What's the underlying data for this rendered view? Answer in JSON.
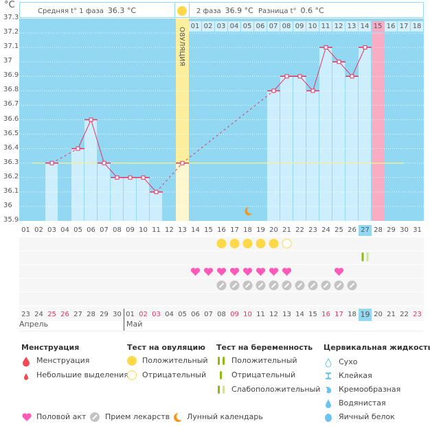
{
  "header": {
    "unit": "°C",
    "phase1_label": "Средняя t° 1 фаза",
    "phase1_value": "36.3 °C",
    "phase2_label": "2 фаза",
    "phase2_value": "36.9 °C",
    "diff_label": "Разница t°",
    "diff_value": "0.6 °C",
    "ovulation_label": "ОВУЛЯЦИЯ"
  },
  "chart_data": {
    "type": "line",
    "title": "",
    "xlabel": "",
    "ylabel": "°C",
    "ylim": [
      35.9,
      37.3
    ],
    "y_ticks": [
      "37.3",
      "37.2",
      "37.1",
      "37",
      "36.9",
      "36.8",
      "36.7",
      "36.6",
      "36.5",
      "36.4",
      "36.3",
      "36.2",
      "36.1",
      "36",
      "35.9"
    ],
    "cycle_days": [
      "01",
      "02",
      "03",
      "04",
      "05",
      "06",
      "07",
      "08",
      "09",
      "10",
      "11",
      "12",
      "13",
      "14",
      "15",
      "16",
      "17",
      "18",
      "19",
      "20",
      "21",
      "22",
      "23",
      "24",
      "25",
      "26",
      "27",
      "28",
      "29",
      "30",
      "31"
    ],
    "series": [
      {
        "name": "Базальная температура",
        "points": [
          {
            "day": 3,
            "value": 36.3
          },
          {
            "day": 5,
            "value": 36.4
          },
          {
            "day": 6,
            "value": 36.6
          },
          {
            "day": 7,
            "value": 36.3
          },
          {
            "day": 8,
            "value": 36.2
          },
          {
            "day": 9,
            "value": 36.2
          },
          {
            "day": 10,
            "value": 36.2
          },
          {
            "day": 11,
            "value": 36.1
          },
          {
            "day": 13,
            "value": 36.3
          },
          {
            "day": 20,
            "value": 36.8
          },
          {
            "day": 21,
            "value": 36.9
          },
          {
            "day": 22,
            "value": 36.9
          },
          {
            "day": 23,
            "value": 36.8
          },
          {
            "day": 24,
            "value": 37.1
          },
          {
            "day": 25,
            "value": 37.0
          },
          {
            "day": 26,
            "value": 36.9
          },
          {
            "day": 27,
            "value": 37.1
          }
        ]
      }
    ],
    "coverline": 36.3,
    "ovulation_day": 13,
    "highlight_day": 28,
    "post_ovulation_days": [
      "01",
      "02",
      "03",
      "04",
      "05",
      "06",
      "07",
      "08",
      "09",
      "10",
      "11",
      "12",
      "13",
      "14",
      "15",
      "16",
      "17",
      "18"
    ],
    "highlight_post_day": "15",
    "moon_day": 18
  },
  "today_index": 27,
  "calendar": {
    "dates": [
      "23",
      "24",
      "25",
      "26",
      "27",
      "28",
      "29",
      "30",
      "01",
      "02",
      "03",
      "04",
      "05",
      "06",
      "07",
      "08",
      "09",
      "10",
      "11",
      "12",
      "13",
      "14",
      "15",
      "16",
      "17",
      "18",
      "19",
      "20",
      "21",
      "22",
      "23"
    ],
    "weekend_indices": [
      3,
      4,
      10,
      11,
      17,
      18,
      24,
      25,
      31
    ],
    "today_index": 27,
    "months": [
      {
        "label": "Апрель",
        "start": 1
      },
      {
        "label": "Май",
        "start": 9
      }
    ]
  },
  "markers": {
    "ovulation_test_positive_days": [
      16,
      17,
      18,
      19,
      20
    ],
    "ovulation_test_negative_days": [
      21
    ],
    "pregnancy_test_faint_days": [
      27
    ],
    "intercourse_days": [
      14,
      15,
      16,
      17,
      18,
      19,
      20,
      21,
      25
    ],
    "medication_days": [
      16,
      17,
      18,
      19,
      20,
      21,
      22,
      23,
      24,
      25,
      26
    ]
  },
  "legend": {
    "menstruation": {
      "title": "Менструация",
      "items": [
        "Менструация",
        "Небольшие выделения"
      ]
    },
    "ovulation_test": {
      "title": "Тест на овуляцию",
      "items": [
        "Положительный",
        "Отрицательный"
      ]
    },
    "pregnancy_test": {
      "title": "Тест на беременность",
      "items": [
        "Положительный",
        "Отрицательный",
        "Слабоположительный"
      ]
    },
    "cervical": {
      "title": "Цервикальная жидкость",
      "items": [
        "Сухо",
        "Клейкая",
        "Кремообразная",
        "Водянистая",
        "Яичный белок"
      ]
    },
    "other": [
      "Половой акт",
      "Прием лекарств",
      "Лунный календарь"
    ]
  },
  "colors": {
    "plot_bg": "#93d8f2",
    "bar": "#cdeefc",
    "ovulation": "#fbef9e",
    "highlight": "#f9adc4",
    "line": "#e8305f",
    "coverline": "#f5ee9a",
    "sun": "#fdd94a",
    "heart": "#ff5ab9",
    "pill": "#c4c4c4",
    "moon": "#f7941d",
    "drop": "#f04a55",
    "test_green": "#8fba12",
    "test_faint": "#cfe49a",
    "cervical": "#6cc3ef"
  }
}
